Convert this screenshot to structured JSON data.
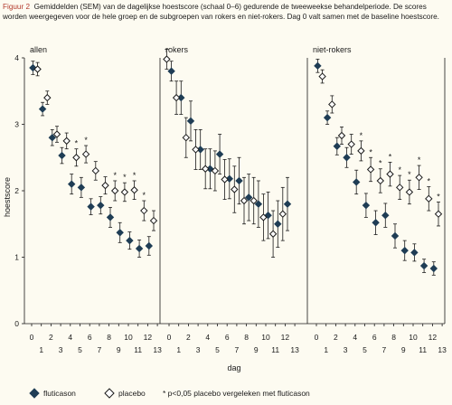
{
  "caption": {
    "label": "Figuur 2",
    "text": "Gemiddelden (SEM) van de dagelijkse hoestscore (schaal 0–6) gedurende de tweeweekse behandelperiode. De scores worden weergegeven voor de hele groep en de subgroepen van rokers en niet-rokers. Dag 0 valt samen met de baseline hoestscore."
  },
  "chart_data": {
    "type": "scatter",
    "ylabel": "hoestscore",
    "xlabel": "dag",
    "ylim": [
      0,
      4
    ],
    "yticks": [
      0,
      1,
      2,
      3,
      4
    ],
    "xlim": [
      0,
      13
    ],
    "xticks": [
      0,
      1,
      2,
      3,
      4,
      5,
      6,
      7,
      8,
      9,
      10,
      11,
      12,
      13
    ],
    "legend": {
      "fluticason": "fluticason",
      "placebo": "placebo",
      "note": "* p<0,05 placebo vergeleken met fluticason"
    },
    "colors": {
      "fluticason": "#1f3d55",
      "placebo": "#ffffff",
      "background": "#fdfbf1"
    },
    "panels": [
      {
        "title": "allen",
        "series": [
          {
            "name": "fluticason",
            "marker": "filled-diamond",
            "x": [
              0,
              1,
              2,
              3,
              4,
              5,
              6,
              7,
              8,
              9,
              10,
              11,
              12
            ],
            "y": [
              3.85,
              3.23,
              2.8,
              2.53,
              2.1,
              2.05,
              1.76,
              1.78,
              1.6,
              1.37,
              1.25,
              1.13,
              1.17
            ],
            "err": [
              0.1,
              0.1,
              0.12,
              0.12,
              0.15,
              0.15,
              0.12,
              0.13,
              0.15,
              0.15,
              0.13,
              0.13,
              0.14
            ]
          },
          {
            "name": "placebo",
            "marker": "open-diamond",
            "x": [
              0,
              1,
              2,
              3,
              4,
              5,
              6,
              7,
              8,
              9,
              10,
              11,
              12
            ],
            "y": [
              3.83,
              3.4,
              2.85,
              2.75,
              2.5,
              2.55,
              2.3,
              2.08,
              2.0,
              1.98,
              2.01,
              1.7,
              1.55
            ],
            "err": [
              0.1,
              0.1,
              0.12,
              0.12,
              0.13,
              0.13,
              0.14,
              0.13,
              0.15,
              0.14,
              0.14,
              0.15,
              0.15
            ]
          }
        ],
        "significant_days": [
          4,
          5,
          8,
          9,
          10,
          11
        ]
      },
      {
        "title": "rokers",
        "series": [
          {
            "name": "fluticason",
            "marker": "filled-diamond",
            "x": [
              0,
              1,
              2,
              3,
              4,
              5,
              6,
              7,
              8,
              9,
              10,
              11,
              12
            ],
            "y": [
              3.8,
              3.4,
              3.05,
              2.62,
              2.33,
              2.55,
              2.18,
              2.15,
              1.9,
              1.8,
              1.63,
              1.5,
              1.8
            ],
            "err": [
              0.15,
              0.25,
              0.3,
              0.3,
              0.3,
              0.3,
              0.3,
              0.35,
              0.35,
              0.35,
              0.35,
              0.35,
              0.4
            ]
          },
          {
            "name": "placebo",
            "marker": "open-diamond",
            "x": [
              0,
              1,
              2,
              3,
              4,
              5,
              6,
              7,
              8,
              9,
              10,
              11,
              12
            ],
            "y": [
              3.98,
              3.4,
              2.8,
              2.62,
              2.33,
              2.3,
              2.17,
              2.02,
              1.85,
              1.85,
              1.6,
              1.35,
              1.65
            ],
            "err": [
              0.15,
              0.25,
              0.3,
              0.3,
              0.3,
              0.3,
              0.3,
              0.35,
              0.35,
              0.35,
              0.35,
              0.35,
              0.4
            ]
          }
        ],
        "significant_days": []
      },
      {
        "title": "niet-rokers",
        "series": [
          {
            "name": "fluticason",
            "marker": "filled-diamond",
            "x": [
              0,
              1,
              2,
              3,
              4,
              5,
              6,
              7,
              8,
              9,
              10,
              11,
              12
            ],
            "y": [
              3.88,
              3.1,
              2.67,
              2.5,
              2.13,
              1.78,
              1.52,
              1.63,
              1.32,
              1.1,
              1.07,
              0.87,
              0.83
            ],
            "err": [
              0.1,
              0.1,
              0.13,
              0.15,
              0.18,
              0.18,
              0.18,
              0.18,
              0.18,
              0.15,
              0.13,
              0.1,
              0.1
            ]
          },
          {
            "name": "placebo",
            "marker": "open-diamond",
            "x": [
              0,
              1,
              2,
              3,
              4,
              5,
              6,
              7,
              8,
              9,
              10,
              11,
              12
            ],
            "y": [
              3.72,
              3.3,
              2.83,
              2.7,
              2.6,
              2.32,
              2.15,
              2.25,
              2.05,
              1.98,
              2.2,
              1.88,
              1.65
            ],
            "err": [
              0.1,
              0.13,
              0.13,
              0.15,
              0.15,
              0.18,
              0.18,
              0.18,
              0.18,
              0.18,
              0.18,
              0.18,
              0.18
            ]
          }
        ],
        "significant_days": [
          4,
          5,
          6,
          7,
          8,
          9,
          10,
          11,
          12
        ]
      }
    ]
  }
}
